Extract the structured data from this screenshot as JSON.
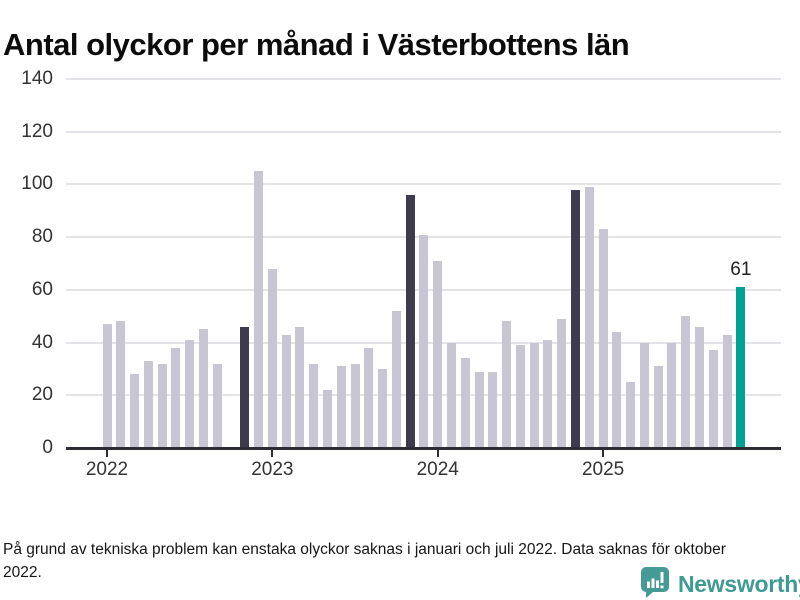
{
  "title": "Antal olyckor per månad i Västerbottens län",
  "footnote": "På grund av tekniska problem kan enstaka olyckor saknas i januari och juli 2022. Data saknas för oktober 2022.",
  "logo": {
    "text": "Newsworthy",
    "icon": "newsworthy-speech-bubble-bar-chart-icon",
    "color": "#459a96"
  },
  "colors": {
    "background": "#ffffff",
    "title_text": "#0c0c0c",
    "axis_text": "#333333",
    "gridline": "#e4e3e8",
    "axis_line": "#2e2d36",
    "bar_default": "#c8c6d3",
    "bar_highlight": "#3e3c4c",
    "bar_latest": "#00a296"
  },
  "chart_data": {
    "type": "bar",
    "title": "Antal olyckor per månad i Västerbottens län",
    "xlabel": "",
    "ylabel": "",
    "ylim": [
      0,
      140
    ],
    "y_ticks": [
      0,
      20,
      40,
      60,
      80,
      100,
      120,
      140
    ],
    "x_tick_labels": [
      "2022",
      "2023",
      "2024",
      "2025"
    ],
    "grid": true,
    "legend": "none",
    "bar_colors": {
      "default": "#c8c6d3",
      "highlight": "#3e3c4c",
      "latest": "#00a296"
    },
    "highlight_months": [
      "2022-11",
      "2023-11",
      "2024-11"
    ],
    "latest_month": "2025-11",
    "missing_months": [
      "2022-10"
    ],
    "data_label": {
      "month": "2025-11",
      "text": "61"
    },
    "months": [
      {
        "month": "2022-01",
        "value": 47
      },
      {
        "month": "2022-02",
        "value": 48
      },
      {
        "month": "2022-03",
        "value": 28
      },
      {
        "month": "2022-04",
        "value": 33
      },
      {
        "month": "2022-05",
        "value": 32
      },
      {
        "month": "2022-06",
        "value": 38
      },
      {
        "month": "2022-07",
        "value": 41
      },
      {
        "month": "2022-08",
        "value": 45
      },
      {
        "month": "2022-09",
        "value": 32
      },
      {
        "month": "2022-10",
        "value": null
      },
      {
        "month": "2022-11",
        "value": 46
      },
      {
        "month": "2022-12",
        "value": 105
      },
      {
        "month": "2023-01",
        "value": 68
      },
      {
        "month": "2023-02",
        "value": 43
      },
      {
        "month": "2023-03",
        "value": 46
      },
      {
        "month": "2023-04",
        "value": 32
      },
      {
        "month": "2023-05",
        "value": 22
      },
      {
        "month": "2023-06",
        "value": 31
      },
      {
        "month": "2023-07",
        "value": 32
      },
      {
        "month": "2023-08",
        "value": 38
      },
      {
        "month": "2023-09",
        "value": 30
      },
      {
        "month": "2023-10",
        "value": 52
      },
      {
        "month": "2023-11",
        "value": 96
      },
      {
        "month": "2023-12",
        "value": 81
      },
      {
        "month": "2024-01",
        "value": 71
      },
      {
        "month": "2024-02",
        "value": 40
      },
      {
        "month": "2024-03",
        "value": 34
      },
      {
        "month": "2024-04",
        "value": 29
      },
      {
        "month": "2024-05",
        "value": 29
      },
      {
        "month": "2024-06",
        "value": 48
      },
      {
        "month": "2024-07",
        "value": 39
      },
      {
        "month": "2024-08",
        "value": 40
      },
      {
        "month": "2024-09",
        "value": 41
      },
      {
        "month": "2024-10",
        "value": 49
      },
      {
        "month": "2024-11",
        "value": 98
      },
      {
        "month": "2024-12",
        "value": 99
      },
      {
        "month": "2025-01",
        "value": 83
      },
      {
        "month": "2025-02",
        "value": 44
      },
      {
        "month": "2025-03",
        "value": 25
      },
      {
        "month": "2025-04",
        "value": 40
      },
      {
        "month": "2025-05",
        "value": 31
      },
      {
        "month": "2025-06",
        "value": 40
      },
      {
        "month": "2025-07",
        "value": 50
      },
      {
        "month": "2025-08",
        "value": 46
      },
      {
        "month": "2025-09",
        "value": 37
      },
      {
        "month": "2025-10",
        "value": 43
      },
      {
        "month": "2025-11",
        "value": 61
      }
    ]
  }
}
